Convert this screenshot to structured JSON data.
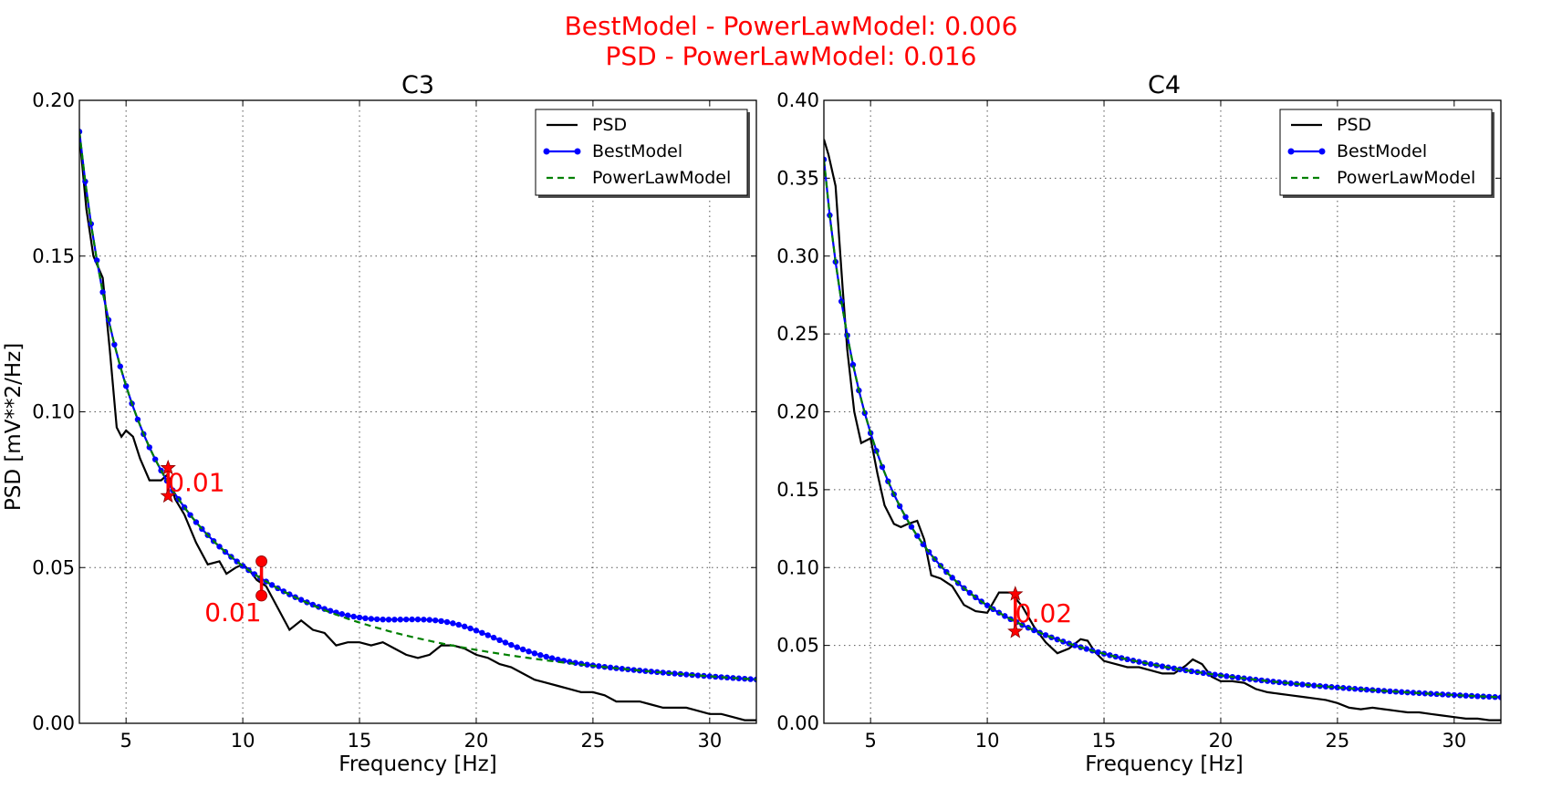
{
  "figure": {
    "suptitle_lines": [
      "BestModel - PowerLawModel: 0.006",
      "PSD - PowerLawModel: 0.016"
    ]
  },
  "legend_labels": [
    "PSD",
    "BestModel",
    "PowerLawModel"
  ],
  "colors": {
    "psd": "#000000",
    "best": "#0000ff",
    "power": "#008000",
    "annotation": "#ff0000"
  },
  "chart_data": [
    {
      "type": "line",
      "title": "C3",
      "xlabel": "Frequency [Hz]",
      "ylabel": "PSD [mV**2/Hz]",
      "xlim": [
        3,
        32
      ],
      "ylim": [
        0,
        0.2
      ],
      "xticks": [
        5,
        10,
        15,
        20,
        25,
        30
      ],
      "yticks": [
        0.0,
        0.05,
        0.1,
        0.15,
        0.2
      ],
      "ytick_labels": [
        "0.00",
        "0.05",
        "0.10",
        "0.15",
        "0.20"
      ],
      "grid": true,
      "legend_position": "top-right",
      "powerlaw": {
        "a": 0.636,
        "b": 1.1
      },
      "bump": {
        "amp": 0.0072,
        "center": 18.8,
        "sigma": 2.2
      },
      "series": [
        {
          "name": "PSD",
          "x": [
            3.0,
            3.3,
            3.6,
            4.0,
            4.3,
            4.6,
            4.8,
            5.0,
            5.3,
            5.6,
            6.0,
            6.5,
            6.8,
            7.1,
            7.5,
            8.0,
            8.5,
            9.0,
            9.3,
            9.7,
            10.0,
            10.3,
            10.6,
            11.0,
            11.5,
            12.0,
            12.5,
            13.0,
            13.5,
            14.0,
            14.5,
            15.0,
            15.5,
            16.0,
            16.5,
            17.0,
            17.5,
            18.0,
            18.5,
            19.0,
            19.5,
            20.0,
            20.5,
            21.0,
            21.5,
            22.0,
            22.5,
            23.0,
            23.5,
            24.0,
            24.5,
            25.0,
            25.5,
            26.0,
            26.5,
            27.0,
            27.5,
            28.0,
            28.5,
            29.0,
            29.5,
            30.0,
            30.5,
            31.0,
            31.5,
            32.0
          ],
          "y": [
            0.189,
            0.165,
            0.15,
            0.143,
            0.12,
            0.095,
            0.092,
            0.094,
            0.092,
            0.085,
            0.078,
            0.078,
            0.08,
            0.072,
            0.067,
            0.058,
            0.051,
            0.052,
            0.048,
            0.05,
            0.051,
            0.049,
            0.046,
            0.044,
            0.037,
            0.03,
            0.033,
            0.03,
            0.029,
            0.025,
            0.026,
            0.026,
            0.025,
            0.026,
            0.024,
            0.022,
            0.021,
            0.022,
            0.025,
            0.025,
            0.024,
            0.022,
            0.021,
            0.019,
            0.018,
            0.016,
            0.014,
            0.013,
            0.012,
            0.011,
            0.01,
            0.01,
            0.009,
            0.007,
            0.007,
            0.007,
            0.006,
            0.005,
            0.005,
            0.005,
            0.004,
            0.003,
            0.003,
            0.002,
            0.001,
            0.001
          ]
        },
        {
          "name": "BestModel"
        },
        {
          "name": "PowerLawModel"
        }
      ],
      "annotations": [
        {
          "label": "0.01",
          "x": 6.8,
          "y_top": 0.082,
          "y_bottom": 0.073,
          "marker": "star",
          "label_side": "right"
        },
        {
          "label": "0.01",
          "x": 10.8,
          "y_top": 0.052,
          "y_bottom": 0.041,
          "marker": "circle",
          "label_side": "left"
        }
      ]
    },
    {
      "type": "line",
      "title": "C4",
      "xlabel": "Frequency [Hz]",
      "ylabel": "",
      "xlim": [
        3,
        32
      ],
      "ylim": [
        0,
        0.4
      ],
      "xticks": [
        5,
        10,
        15,
        20,
        25,
        30
      ],
      "yticks": [
        0.0,
        0.05,
        0.1,
        0.15,
        0.2,
        0.25,
        0.3,
        0.35,
        0.4
      ],
      "ytick_labels": [
        "0.00",
        "0.05",
        "0.10",
        "0.15",
        "0.20",
        "0.25",
        "0.30",
        "0.35",
        "0.40"
      ],
      "grid": true,
      "legend_position": "top-right",
      "powerlaw": {
        "a": 1.51,
        "b": 1.3
      },
      "bump": {
        "amp": 0,
        "center": 0,
        "sigma": 1
      },
      "series": [
        {
          "name": "PSD",
          "x": [
            3.0,
            3.2,
            3.5,
            3.8,
            4.0,
            4.3,
            4.6,
            5.0,
            5.3,
            5.6,
            6.0,
            6.3,
            6.6,
            7.0,
            7.3,
            7.6,
            8.0,
            8.5,
            9.0,
            9.5,
            10.0,
            10.5,
            11.0,
            11.5,
            12.0,
            12.5,
            13.0,
            13.5,
            14.0,
            14.3,
            14.6,
            15.0,
            15.5,
            16.0,
            16.5,
            17.0,
            17.5,
            18.0,
            18.5,
            18.8,
            19.2,
            19.6,
            20.0,
            20.5,
            21.0,
            21.5,
            22.0,
            22.5,
            23.0,
            23.5,
            24.0,
            24.5,
            25.0,
            25.5,
            26.0,
            26.5,
            27.0,
            27.5,
            28.0,
            28.5,
            29.0,
            29.5,
            30.0,
            30.5,
            31.0,
            31.5,
            32.0
          ],
          "y": [
            0.375,
            0.365,
            0.345,
            0.28,
            0.24,
            0.2,
            0.18,
            0.183,
            0.16,
            0.14,
            0.128,
            0.126,
            0.128,
            0.13,
            0.118,
            0.095,
            0.093,
            0.088,
            0.076,
            0.072,
            0.071,
            0.084,
            0.084,
            0.075,
            0.062,
            0.052,
            0.045,
            0.048,
            0.054,
            0.053,
            0.046,
            0.04,
            0.038,
            0.036,
            0.036,
            0.034,
            0.032,
            0.032,
            0.037,
            0.041,
            0.038,
            0.03,
            0.027,
            0.027,
            0.026,
            0.022,
            0.02,
            0.019,
            0.018,
            0.017,
            0.016,
            0.015,
            0.013,
            0.01,
            0.009,
            0.01,
            0.009,
            0.008,
            0.007,
            0.007,
            0.006,
            0.005,
            0.004,
            0.003,
            0.003,
            0.002,
            0.002
          ]
        },
        {
          "name": "BestModel"
        },
        {
          "name": "PowerLawModel"
        }
      ],
      "annotations": [
        {
          "label": "0.02",
          "x": 11.2,
          "y_top": 0.083,
          "y_bottom": 0.059,
          "marker": "star",
          "label_side": "right"
        }
      ]
    }
  ]
}
